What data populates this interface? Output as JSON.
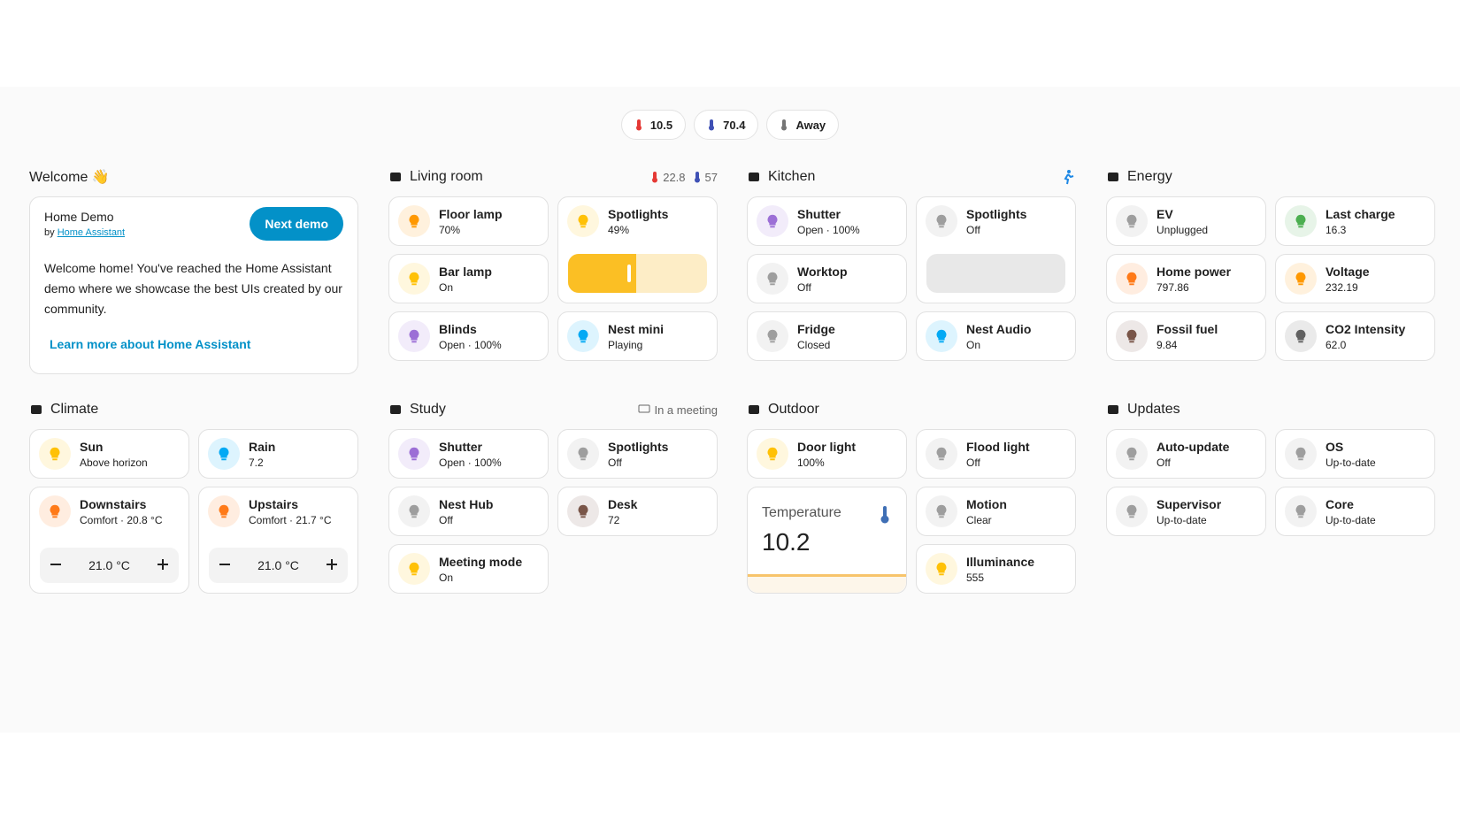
{
  "chips": [
    {
      "text": "10.5"
    },
    {
      "text": "70.4"
    },
    {
      "text": "Away"
    }
  ],
  "sections": [
    {
      "title": "Welcome 👋",
      "card": {
        "name": "Home Demo",
        "by": "by",
        "link": "Home Assistant",
        "button": "Next demo",
        "body": "Welcome home! You've reached the Home Assistant demo where we showcase the best UIs created by our community.",
        "more": "Learn more about Home Assistant"
      }
    },
    {
      "title": "Living room",
      "badges": [
        "22.8",
        "57"
      ],
      "cards": [
        {
          "name": "Floor lamp",
          "state": "70%"
        },
        {
          "name": "Spotlights",
          "state": "49%"
        },
        {
          "name": "Bar lamp",
          "state": "On"
        },
        {
          "name": "Blinds",
          "state": "Open · 100%"
        },
        {
          "name": "Nest mini",
          "state": "Playing"
        }
      ]
    },
    {
      "title": "Kitchen",
      "cards": [
        {
          "name": "Shutter",
          "state": "Open · 100%"
        },
        {
          "name": "Spotlights",
          "state": "Off"
        },
        {
          "name": "Worktop",
          "state": "Off"
        },
        {
          "name": "Fridge",
          "state": "Closed"
        },
        {
          "name": "Nest Audio",
          "state": "On"
        }
      ]
    },
    {
      "title": "Energy",
      "cards": [
        {
          "name": "EV",
          "state": "Unplugged"
        },
        {
          "name": "Last charge",
          "state": "16.3"
        },
        {
          "name": "Home power",
          "state": "797.86"
        },
        {
          "name": "Voltage",
          "state": "232.19"
        },
        {
          "name": "Fossil fuel",
          "state": "9.84"
        },
        {
          "name": "CO2 Intensity",
          "state": "62.0"
        }
      ]
    },
    {
      "title": "Climate",
      "cards": [
        {
          "name": "Sun",
          "state": "Above horizon"
        },
        {
          "name": "Rain",
          "state": "7.2"
        },
        {
          "name": "Downstairs",
          "state": "Comfort · 20.8 °C",
          "setpoint": "21.0 °C"
        },
        {
          "name": "Upstairs",
          "state": "Comfort · 21.7 °C",
          "setpoint": "21.0 °C"
        }
      ]
    },
    {
      "title": "Study",
      "badges": [
        "In a meeting"
      ],
      "cards": [
        {
          "name": "Shutter",
          "state": "Open · 100%"
        },
        {
          "name": "Spotlights",
          "state": "Off"
        },
        {
          "name": "Nest Hub",
          "state": "Off"
        },
        {
          "name": "Desk",
          "state": "72"
        },
        {
          "name": "Meeting mode",
          "state": "On"
        }
      ]
    },
    {
      "title": "Outdoor",
      "cards": [
        {
          "name": "Door light",
          "state": "100%"
        },
        {
          "name": "Flood light",
          "state": "Off"
        },
        {
          "name": "Temperature",
          "state": "10.2"
        },
        {
          "name": "Motion",
          "state": "Clear"
        },
        {
          "name": "Illuminance",
          "state": "555"
        }
      ]
    },
    {
      "title": "Updates",
      "cards": [
        {
          "name": "Auto-update",
          "state": "Off"
        },
        {
          "name": "OS",
          "state": "Up-to-date"
        },
        {
          "name": "Supervisor",
          "state": "Up-to-date"
        },
        {
          "name": "Core",
          "state": "Up-to-date"
        }
      ]
    }
  ]
}
